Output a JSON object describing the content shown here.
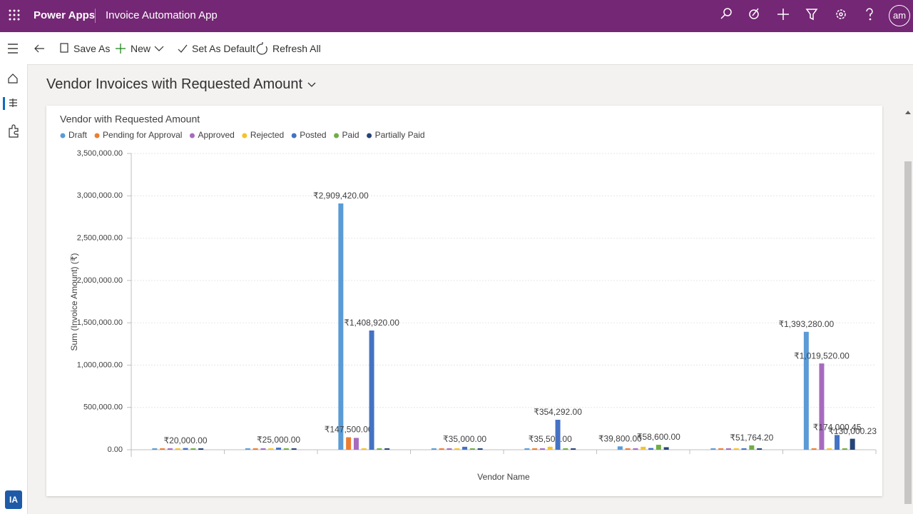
{
  "header": {
    "brand": "Power Apps",
    "app_name": "Invoice Automation App",
    "avatar": "am"
  },
  "commands": [
    "Save As",
    "New",
    "Set As Default",
    "Refresh All"
  ],
  "view_title": "Vendor Invoices with Requested Amount",
  "nav_badge": "IA",
  "chart_data": {
    "type": "bar",
    "title": "Vendor with Requested Amount",
    "x_label": "Vendor Name",
    "y_label": "Sum (Invoice Amount) (₹)",
    "categories": [
      null,
      null,
      null,
      null,
      null,
      null,
      null,
      null
    ],
    "series": [
      {
        "name": "Draft",
        "color": "#5b9bd5",
        "values": [
          0,
          0,
          2909420,
          0,
          0,
          39800,
          0,
          1393280
        ],
        "value_labels": [
          null,
          null,
          "₹2,909,420.00",
          null,
          null,
          "₹39,800.00",
          null,
          "₹1,393,280.00"
        ]
      },
      {
        "name": "Pending for Approval",
        "color": "#ed7d31",
        "values": [
          0,
          0,
          147500,
          0,
          0,
          0,
          0,
          0
        ],
        "value_labels": [
          null,
          null,
          "₹147,500.00",
          null,
          null,
          null,
          null,
          null
        ]
      },
      {
        "name": "Approved",
        "color": "#a66bbe",
        "values": [
          0,
          0,
          140000,
          0,
          0,
          0,
          0,
          1019520
        ],
        "value_labels": [
          null,
          null,
          null,
          null,
          null,
          null,
          null,
          "₹1,019,520.00"
        ]
      },
      {
        "name": "Rejected",
        "color": "#f4c22b",
        "values": [
          0,
          0,
          0,
          0,
          35500,
          35000,
          0,
          0
        ],
        "value_labels": [
          null,
          null,
          null,
          null,
          "₹35,500.00",
          null,
          null,
          null
        ]
      },
      {
        "name": "Posted",
        "color": "#4472c4",
        "values": [
          20000,
          25000,
          1408920,
          35000,
          354292,
          20000,
          0,
          174000.45
        ],
        "value_labels": [
          "₹20,000.00",
          "₹25,000.00",
          "₹1,408,920.00",
          "₹35,000.00",
          "₹354,292.00",
          null,
          null,
          "₹174,000.45"
        ]
      },
      {
        "name": "Paid",
        "color": "#70ad47",
        "values": [
          0,
          0,
          0,
          0,
          0,
          58600,
          51764.2,
          0
        ],
        "value_labels": [
          null,
          null,
          null,
          null,
          null,
          "₹58,600.00",
          "₹51,764.20",
          null
        ]
      },
      {
        "name": "Partially Paid",
        "color": "#264478",
        "values": [
          0,
          0,
          0,
          0,
          0,
          30000,
          0,
          130000.23
        ],
        "value_labels": [
          null,
          null,
          null,
          null,
          null,
          null,
          null,
          "₹130,000.23"
        ]
      }
    ],
    "ylim": [
      0,
      3500000
    ],
    "yticks": [
      {
        "value": 0,
        "label": "0.00"
      },
      {
        "value": 500000,
        "label": "500,000.00"
      },
      {
        "value": 1000000,
        "label": "1,000,000.00"
      },
      {
        "value": 1500000,
        "label": "1,500,000.00"
      },
      {
        "value": 2000000,
        "label": "2,000,000.00"
      },
      {
        "value": 2500000,
        "label": "2,500,000.00"
      },
      {
        "value": 3000000,
        "label": "3,000,000.00"
      },
      {
        "value": 3500000,
        "label": "3,500,000.00"
      }
    ],
    "grid": true,
    "legend": "top-left"
  }
}
